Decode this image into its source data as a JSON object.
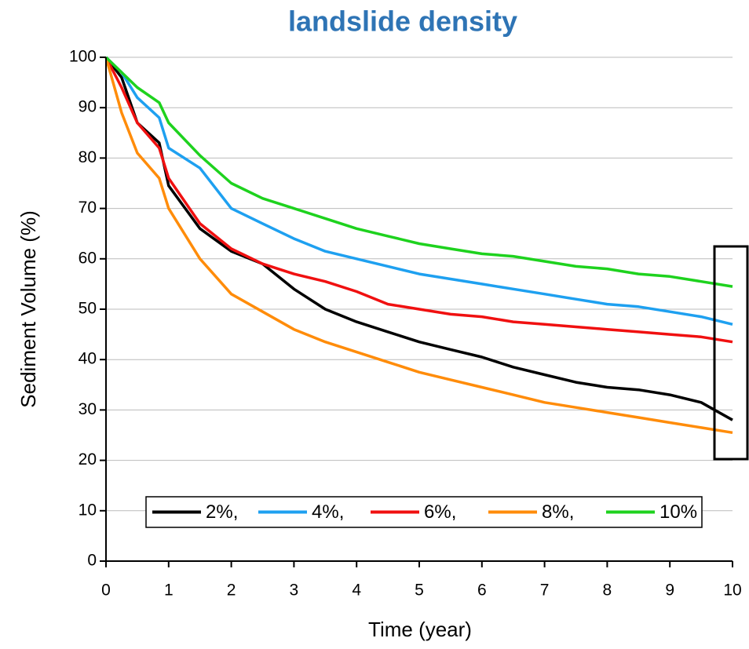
{
  "chart_data": {
    "type": "line",
    "title": "landslide density",
    "x_label": "Time (year)",
    "y_label": "Sediment Volume (%)",
    "x": [
      0,
      0.25,
      0.5,
      0.85,
      1,
      1.5,
      2,
      2.5,
      3,
      3.5,
      4,
      4.5,
      5,
      5.5,
      6,
      6.5,
      7,
      7.5,
      8,
      8.5,
      9,
      9.5,
      10
    ],
    "series": [
      {
        "name": "2%,",
        "color": "#000000",
        "values": [
          100,
          96,
          87,
          83,
          74.5,
          66,
          61.5,
          59,
          54,
          50,
          47.5,
          45.5,
          43.5,
          42,
          40.5,
          38.5,
          37,
          35.5,
          34.5,
          34,
          33,
          31.5,
          28
        ]
      },
      {
        "name": "4%,",
        "color": "#1ea0f0",
        "values": [
          100,
          97,
          92,
          88,
          82,
          78,
          70,
          67,
          64,
          61.5,
          60,
          58.5,
          57,
          56,
          55,
          54,
          53,
          52,
          51,
          50.5,
          49.5,
          48.5,
          47
        ]
      },
      {
        "name": "6%,",
        "color": "#f01010",
        "values": [
          100,
          94,
          87,
          82,
          76,
          67,
          62,
          59,
          57,
          55.5,
          53.5,
          51,
          50,
          49,
          48.5,
          47.5,
          47,
          46.5,
          46,
          45.5,
          45,
          44.5,
          43.5
        ]
      },
      {
        "name": "8%,",
        "color": "#ff8c0a",
        "values": [
          100,
          89,
          81,
          76,
          70,
          60,
          53,
          49.5,
          46,
          43.5,
          41.5,
          39.5,
          37.5,
          36,
          34.5,
          33,
          31.5,
          30.5,
          29.5,
          28.5,
          27.5,
          26.5,
          25.5
        ]
      },
      {
        "name": "10%",
        "color": "#1ed21e",
        "values": [
          100,
          97,
          94,
          91,
          87,
          80.5,
          75,
          72,
          70,
          68,
          66,
          64.5,
          63,
          62,
          61,
          60.5,
          59.5,
          58.5,
          58,
          57,
          56.5,
          55.5,
          54.5
        ]
      }
    ],
    "xlim": [
      0,
      10
    ],
    "xticks": [
      0,
      1,
      2,
      3,
      4,
      5,
      6,
      7,
      8,
      9,
      10
    ],
    "ylim": [
      0,
      100
    ],
    "yticks": [
      0,
      10,
      20,
      30,
      40,
      50,
      60,
      70,
      80,
      90,
      100
    ],
    "grid": true,
    "legend": "lower center"
  }
}
